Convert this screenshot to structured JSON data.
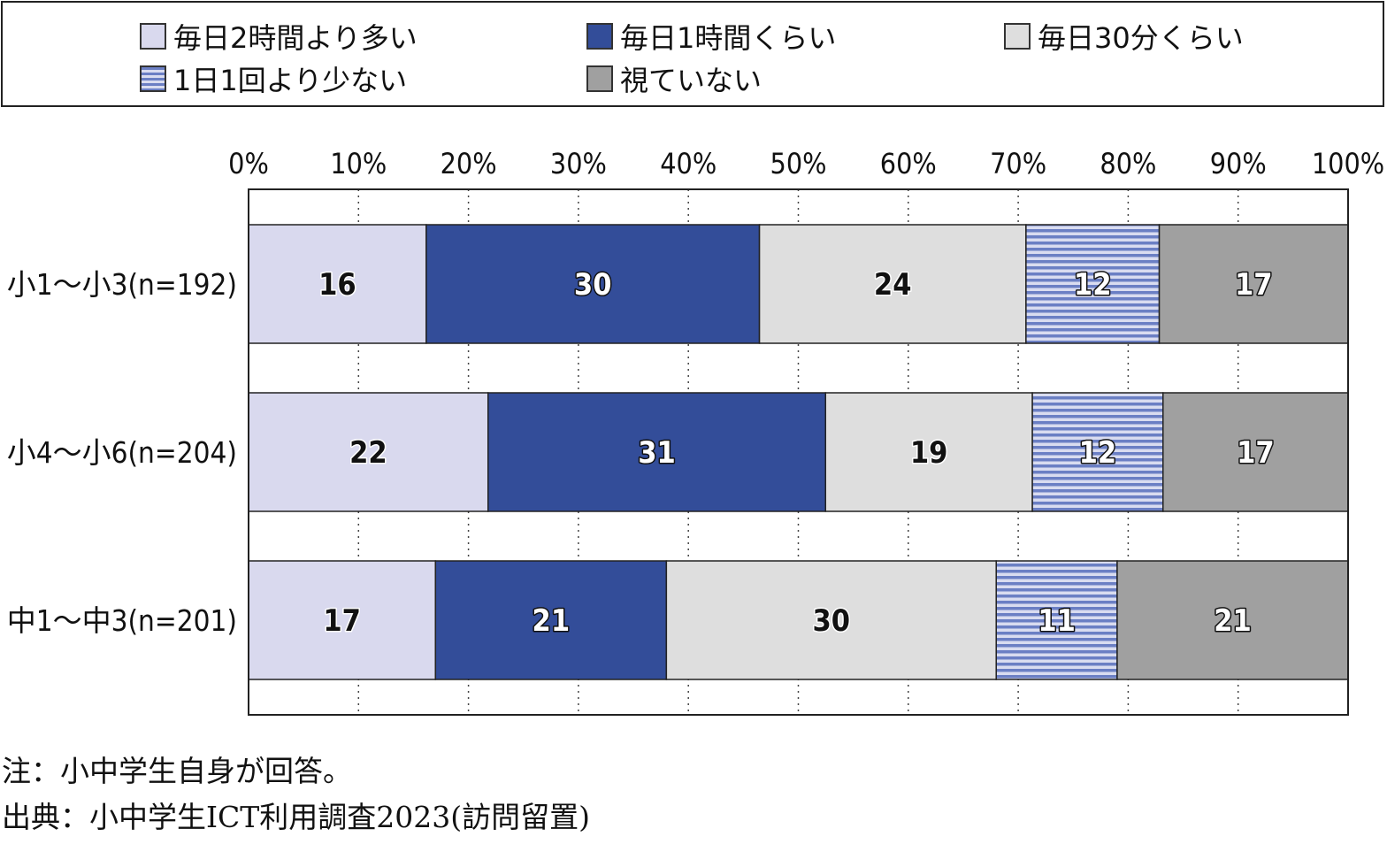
{
  "chart_data": {
    "type": "bar",
    "orientation": "horizontal",
    "stacked": true,
    "categories": [
      "小1～小3(n=192)",
      "小4～小6(n=204)",
      "中1～中3(n=201)"
    ],
    "series": [
      {
        "name": "毎日2時間より多い",
        "values": [
          16,
          22,
          17
        ],
        "color": "#d9d9ee",
        "pattern": "solid"
      },
      {
        "name": "毎日1時間くらい",
        "values": [
          30,
          31,
          21
        ],
        "color": "#334d99",
        "pattern": "solid"
      },
      {
        "name": "毎日30分くらい",
        "values": [
          24,
          19,
          30
        ],
        "color": "#dedede",
        "pattern": "solid"
      },
      {
        "name": "1日1回より少ない",
        "values": [
          12,
          12,
          11
        ],
        "color": "#6b7fc4",
        "pattern": "horizontal-stripes"
      },
      {
        "name": "視ていない",
        "values": [
          17,
          17,
          21
        ],
        "color": "#a0a0a0",
        "pattern": "solid"
      }
    ],
    "xlim": [
      0,
      100
    ],
    "xticks": [
      "0%",
      "10%",
      "20%",
      "30%",
      "40%",
      "50%",
      "60%",
      "70%",
      "80%",
      "90%",
      "100%"
    ],
    "grid": "vertical-dotted",
    "legend_position": "top",
    "data_labels": true
  },
  "notes": [
    "注：小中学生自身が回答。",
    "出典：小中学生ICT利用調査2023(訪問留置)"
  ]
}
